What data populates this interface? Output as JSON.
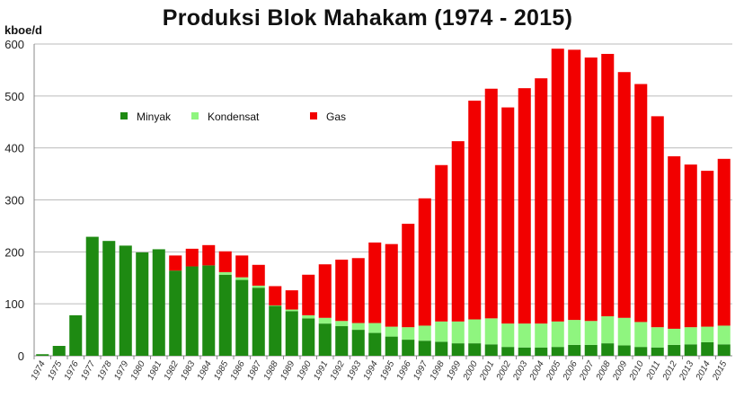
{
  "chart_data": {
    "type": "bar",
    "stacked": true,
    "title": "Produksi Blok Mahakam (1974 - 2015)",
    "ylabel": "kboe/d",
    "xlabel": "",
    "ylim": [
      0,
      600
    ],
    "yticks": [
      0,
      100,
      200,
      300,
      400,
      500,
      600
    ],
    "grid": true,
    "legend_position": "upper-left inside",
    "categories": [
      "1974",
      "1975",
      "1976",
      "1977",
      "1978",
      "1979",
      "1980",
      "1981",
      "1982",
      "1983",
      "1984",
      "1985",
      "1986",
      "1987",
      "1988",
      "1989",
      "1990",
      "1991",
      "1992",
      "1993",
      "1994",
      "1995",
      "1996",
      "1997",
      "1998",
      "1999",
      "2000",
      "2001",
      "2002",
      "2003",
      "2004",
      "2005",
      "2006",
      "2007",
      "2008",
      "2009",
      "2010",
      "2011",
      "2012",
      "2013",
      "2014",
      "2015"
    ],
    "series": [
      {
        "name": "Minyak",
        "color": "#1e8a12",
        "values": [
          3,
          19,
          78,
          229,
          221,
          212,
          199,
          205,
          164,
          172,
          174,
          156,
          146,
          131,
          96,
          86,
          72,
          62,
          57,
          50,
          44,
          37,
          31,
          29,
          27,
          24,
          24,
          22,
          17,
          16,
          16,
          17,
          21,
          21,
          24,
          20,
          17,
          16,
          21,
          22,
          26,
          22
        ]
      },
      {
        "name": "Kondensat",
        "color": "#8ff57f",
        "values": [
          0,
          0,
          0,
          0,
          0,
          0,
          0,
          0,
          0,
          0,
          0,
          5,
          5,
          4,
          1,
          3,
          6,
          11,
          10,
          13,
          19,
          19,
          24,
          29,
          39,
          42,
          46,
          50,
          45,
          46,
          46,
          49,
          48,
          46,
          52,
          53,
          48,
          39,
          31,
          33,
          30,
          36
        ]
      },
      {
        "name": "Gas",
        "color": "#f20000",
        "values": [
          0,
          0,
          0,
          0,
          0,
          0,
          0,
          0,
          29,
          34,
          39,
          40,
          42,
          40,
          37,
          37,
          78,
          103,
          118,
          125,
          155,
          159,
          199,
          245,
          301,
          347,
          421,
          442,
          416,
          453,
          472,
          525,
          520,
          507,
          505,
          473,
          458,
          406,
          332,
          313,
          300,
          321
        ]
      }
    ]
  }
}
